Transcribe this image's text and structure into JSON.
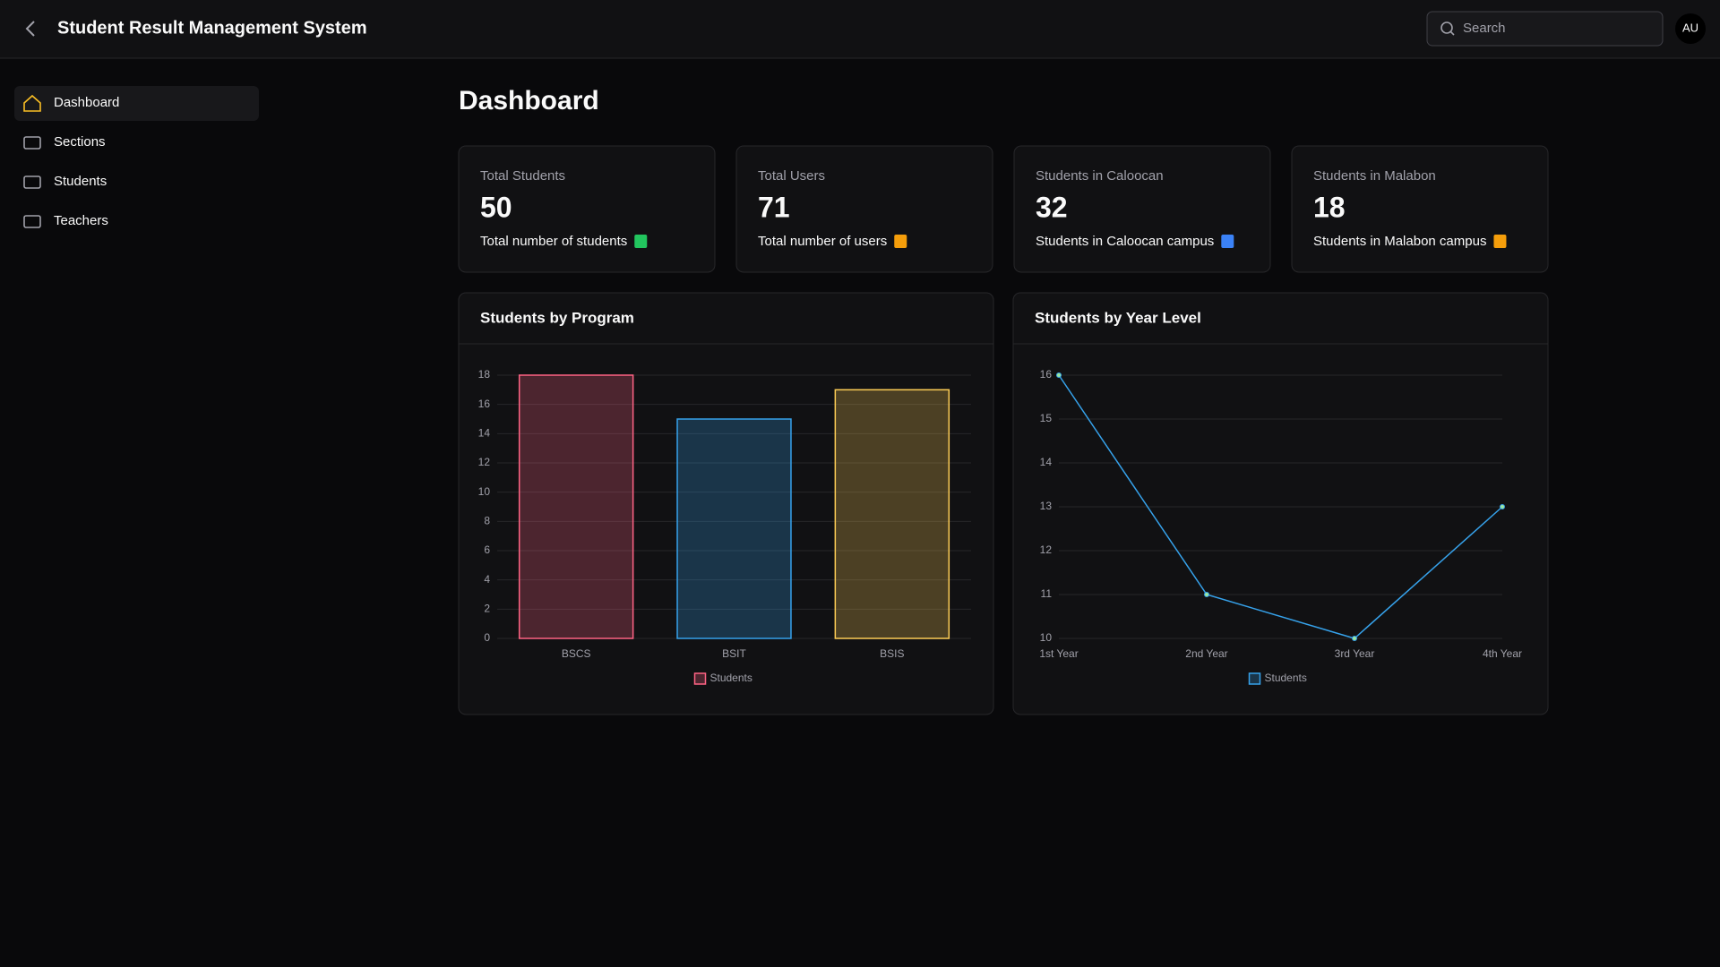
{
  "header": {
    "title": "Student Result Management System",
    "search_placeholder": "Search",
    "avatar": "AU"
  },
  "sidebar": {
    "items": [
      "Dashboard",
      "Sections",
      "Students",
      "Teachers"
    ]
  },
  "page_title": "Dashboard",
  "stats": [
    {
      "label": "Total Students",
      "value": 50,
      "description": "Total number of students",
      "color": "#22c55e"
    },
    {
      "label": "Total Users",
      "value": 71,
      "description": "Total number of users",
      "color": "#f59e0b"
    },
    {
      "label": "Students in Caloocan",
      "value": 32,
      "description": "Students in Caloocan campus",
      "color": "#3b82f6"
    },
    {
      "label": "Students in Malabon",
      "value": 18,
      "description": "Students in Malabon campus",
      "color": "#f59e0b"
    }
  ],
  "chart_data": [
    {
      "type": "bar",
      "title": "Students by Program",
      "categories": [
        "BSCS",
        "BSIT",
        "BSIS"
      ],
      "series": [
        {
          "name": "Students",
          "values": [
            18,
            15,
            17
          ],
          "colors": [
            "#ff6384",
            "#36a2eb",
            "#ffce56"
          ]
        }
      ],
      "ylim": [
        0,
        18
      ],
      "yticks": [
        0,
        2,
        4,
        6,
        8,
        10,
        12,
        14,
        16,
        18
      ],
      "grid": true
    },
    {
      "type": "line",
      "title": "Students by Year Level",
      "categories": [
        "1st Year",
        "2nd Year",
        "3rd Year",
        "4th Year"
      ],
      "series": [
        {
          "name": "Students",
          "values": [
            16,
            11,
            10,
            13
          ],
          "color": "#36a2eb"
        }
      ],
      "ylim": [
        10,
        16
      ],
      "yticks": [
        10,
        11,
        12,
        13,
        14,
        15,
        16
      ],
      "grid": true
    }
  ]
}
